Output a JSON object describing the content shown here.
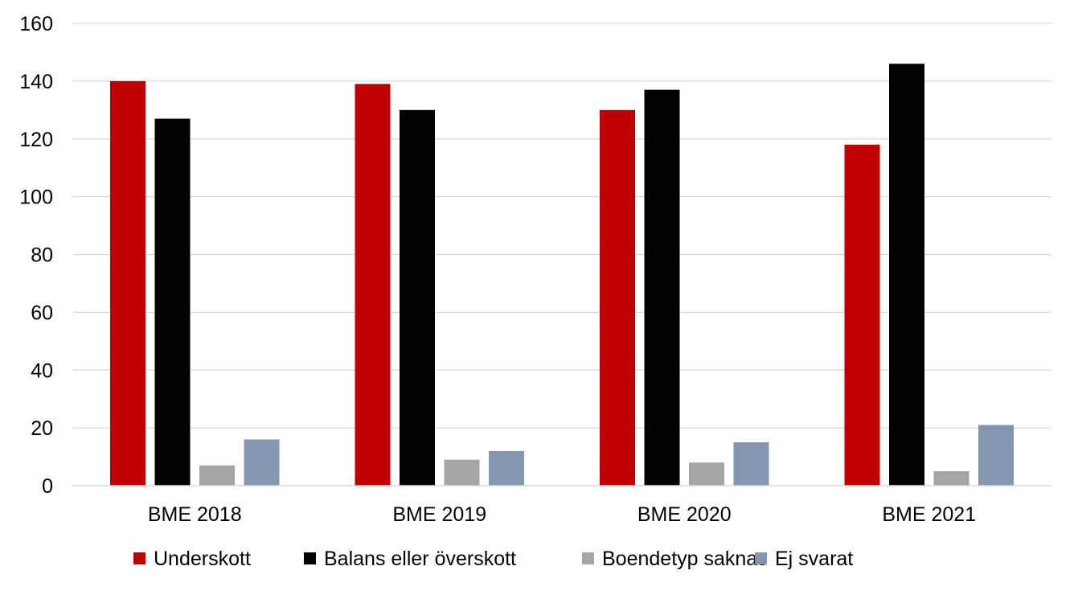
{
  "chart_data": {
    "type": "bar",
    "title": "",
    "xlabel": "",
    "ylabel": "",
    "categories": [
      "BME 2018",
      "BME 2019",
      "BME 2020",
      "BME 2021"
    ],
    "series": [
      {
        "name": "Underskott",
        "color": "#c00000",
        "values": [
          140,
          139,
          130,
          118
        ]
      },
      {
        "name": "Balans eller överskott",
        "color": "#000000",
        "values": [
          127,
          130,
          137,
          146
        ]
      },
      {
        "name": "Boendetyp saknas",
        "color": "#a5a5a5",
        "values": [
          7,
          9,
          8,
          5
        ]
      },
      {
        "name": "Ej svarat",
        "color": "#8497b0",
        "values": [
          16,
          12,
          15,
          21
        ]
      }
    ],
    "ylim": [
      0,
      160
    ],
    "yticks": [
      0,
      20,
      40,
      60,
      80,
      100,
      120,
      140,
      160
    ],
    "grid": true,
    "legend_position": "bottom"
  }
}
